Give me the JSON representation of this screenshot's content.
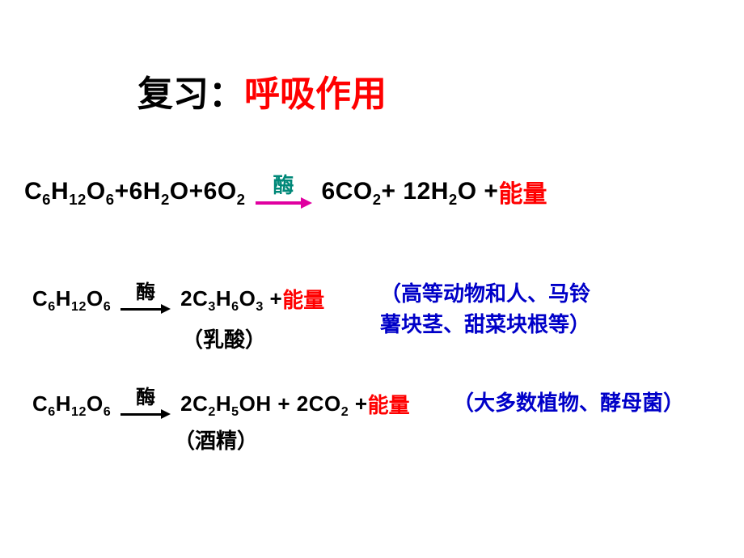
{
  "colors": {
    "background": "#ffffff",
    "black": "#000000",
    "red": "#ff0000",
    "blue": "#0000c8",
    "teal": "#008878",
    "magenta": "#e000a0"
  },
  "title": {
    "prefix": "复习：",
    "highlight": "呼吸作用",
    "fontsize_pt": 33
  },
  "equation1": {
    "type": "chemical-equation",
    "lhs_html": "C<sub>6</sub>H<sub>12</sub>O<sub>6</sub>+6H<sub>2</sub>O+6O<sub>2</sub>",
    "catalyst": "酶",
    "catalyst_color": "#008878",
    "arrow_color": "#e000a0",
    "rhs_prefix_html": "6CO<sub>2</sub>+ 12H<sub>2</sub>O +",
    "energy": "能量",
    "fontsize_pt": 22
  },
  "equation2": {
    "type": "chemical-equation",
    "lhs_html": "C<sub>6</sub>H<sub>12</sub>O<sub>6</sub>",
    "catalyst": "酶",
    "catalyst_color": "#000000",
    "arrow_color": "#000000",
    "rhs_prefix_html": "2C<sub>3</sub>H<sub>6</sub>O<sub>3</sub> + ",
    "energy": "能量",
    "product_name": "（乳酸）",
    "note_line1": "（高等动物和人、马铃",
    "note_line2": "薯块茎、甜菜块根等）",
    "fontsize_pt": 20
  },
  "equation3": {
    "type": "chemical-equation",
    "lhs_html": "C<sub>6</sub>H<sub>12</sub>O<sub>6</sub>",
    "catalyst": "酶",
    "catalyst_color": "#000000",
    "arrow_color": "#000000",
    "rhs_prefix_html": "2C<sub>2</sub>H<sub>5</sub>OH + 2CO<sub>2</sub> + ",
    "energy": "能量",
    "product_name": "（酒精）",
    "note": "（大多数植物、酵母菌）",
    "fontsize_pt": 20
  }
}
